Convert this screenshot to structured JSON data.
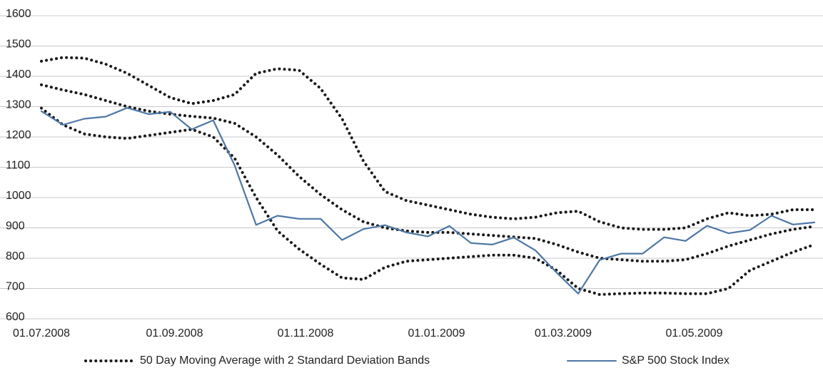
{
  "chart_data": {
    "type": "line",
    "x": [
      "01.07.2008",
      "11.07.2008",
      "21.07.2008",
      "31.07.2008",
      "10.08.2008",
      "20.08.2008",
      "30.08.2008",
      "09.09.2008",
      "19.09.2008",
      "29.09.2008",
      "09.10.2008",
      "19.10.2008",
      "29.10.2008",
      "08.11.2008",
      "18.11.2008",
      "28.11.2008",
      "08.12.2008",
      "18.12.2008",
      "28.12.2008",
      "07.01.2009",
      "17.01.2009",
      "27.01.2009",
      "06.02.2009",
      "16.02.2009",
      "26.02.2009",
      "08.03.2009",
      "18.03.2009",
      "28.03.2009",
      "07.04.2009",
      "17.04.2009",
      "27.04.2009",
      "07.05.2009",
      "17.05.2009",
      "27.05.2009",
      "06.06.2009",
      "16.06.2009",
      "26.06.2009"
    ],
    "series": [
      {
        "name": "50 Day Moving Average with 2 Standard Deviation Bands",
        "color": "#1a1a1a",
        "style": "dotted",
        "values": [
          1372,
          1355,
          1340,
          1320,
          1300,
          1285,
          1275,
          1268,
          1262,
          1245,
          1200,
          1140,
          1070,
          1010,
          960,
          920,
          900,
          890,
          885,
          885,
          880,
          875,
          870,
          865,
          845,
          820,
          800,
          795,
          790,
          790,
          795,
          815,
          840,
          860,
          880,
          895,
          905
        ],
        "upper": [
          1450,
          1462,
          1460,
          1440,
          1410,
          1370,
          1330,
          1310,
          1320,
          1340,
          1410,
          1425,
          1420,
          1360,
          1260,
          1120,
          1020,
          990,
          975,
          960,
          945,
          935,
          930,
          935,
          950,
          955,
          920,
          900,
          895,
          895,
          900,
          930,
          950,
          940,
          945,
          960,
          960
        ],
        "lower": [
          1295,
          1240,
          1210,
          1200,
          1195,
          1205,
          1215,
          1225,
          1200,
          1130,
          1000,
          890,
          830,
          780,
          735,
          730,
          770,
          790,
          795,
          800,
          805,
          810,
          810,
          800,
          760,
          700,
          680,
          683,
          685,
          685,
          683,
          683,
          700,
          760,
          790,
          820,
          845
        ]
      },
      {
        "name": "S&P 500 Stock Index",
        "color": "#4e77a6",
        "style": "solid",
        "values": [
          1285,
          1240,
          1260,
          1267,
          1296,
          1275,
          1283,
          1225,
          1255,
          1106,
          910,
          940,
          930,
          930,
          860,
          896,
          909,
          885,
          872,
          906,
          850,
          845,
          868,
          826,
          752,
          683,
          794,
          815,
          815,
          869,
          857,
          907,
          882,
          893,
          940,
          911,
          918
        ]
      }
    ],
    "xlim": [
      "01.07.2008",
      "29.06.2009"
    ],
    "xticks": [
      "01.07.2008",
      "01.09.2008",
      "01.11.2008",
      "01.01.2009",
      "01.03.2009",
      "01.05.2009"
    ],
    "ylim": [
      600,
      1600
    ],
    "yticks": [
      600,
      700,
      800,
      900,
      1000,
      1100,
      1200,
      1300,
      1400,
      1500,
      1600
    ],
    "grid": true
  }
}
